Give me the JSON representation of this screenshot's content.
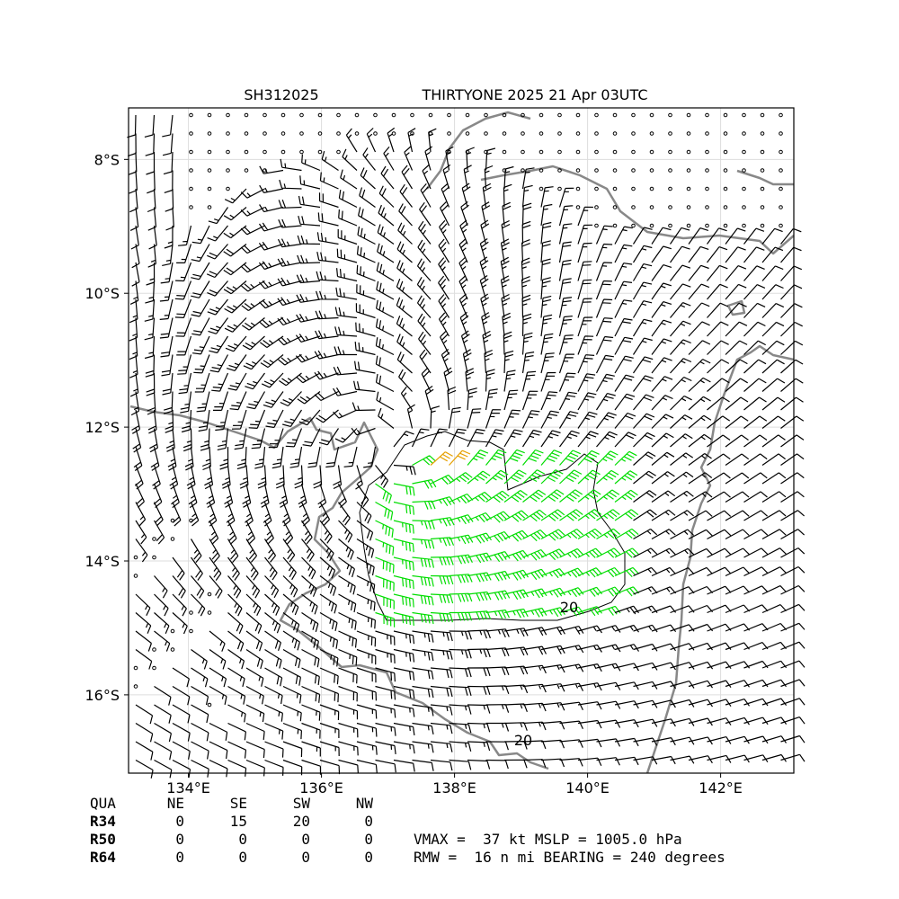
{
  "title": {
    "storm_id": "SH312025",
    "storm_time": "THIRTYONE 2025 21 Apr 03UTC"
  },
  "map": {
    "xlim": [
      133.1,
      143.1
    ],
    "ylim": [
      -17.17,
      -7.23
    ],
    "xticks": [
      {
        "value": 134,
        "label": "134°E"
      },
      {
        "value": 136,
        "label": "136°E"
      },
      {
        "value": 138,
        "label": "138°E"
      },
      {
        "value": 140,
        "label": "140°E"
      },
      {
        "value": 142,
        "label": "142°E"
      }
    ],
    "yticks": [
      {
        "value": -8,
        "label": "8°S"
      },
      {
        "value": -10,
        "label": "10°S"
      },
      {
        "value": -12,
        "label": "12°S"
      },
      {
        "value": -14,
        "label": "14°S"
      },
      {
        "value": -16,
        "label": "16°S"
      }
    ],
    "contour_labels": [
      "20",
      "20"
    ]
  },
  "radii_table": {
    "header": [
      "QUA",
      "NE",
      "SE",
      "SW",
      "NW"
    ],
    "rows": [
      {
        "name": "R34",
        "values": [
          0,
          15,
          20,
          0
        ]
      },
      {
        "name": "R50",
        "values": [
          0,
          0,
          0,
          0
        ]
      },
      {
        "name": "R64",
        "values": [
          0,
          0,
          0,
          0
        ]
      }
    ]
  },
  "summary": [
    "VMAX =  37 kt MSLP = 1005.0 hPa",
    "RMW =  16 n mi BEARING = 240 degrees"
  ]
}
